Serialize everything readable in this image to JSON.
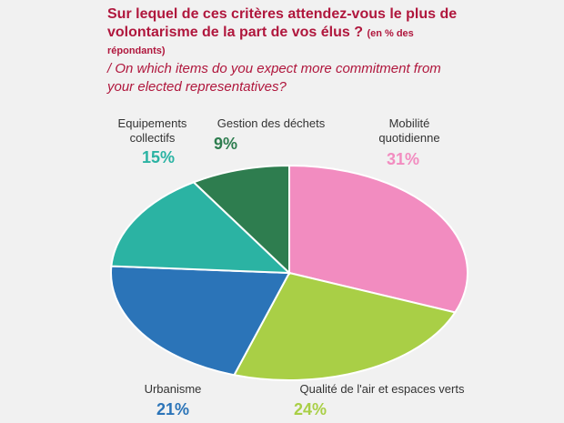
{
  "chart_data": {
    "type": "pie",
    "title": "Sur lequel de ces critères attendez-vous le plus de volontarisme de la part de vos élus ?",
    "title_note": "(en % des répondants)",
    "subtitle": "/ On which items do you expect more commitment from your elected representatives?",
    "categories": [
      "Mobilité quotidienne",
      "Qualité de l'air et espaces verts",
      "Urbanisme",
      "Equipements collectifs",
      "Gestion des déchets"
    ],
    "values": [
      31,
      24,
      21,
      15,
      9
    ],
    "value_labels": [
      "31%",
      "24%",
      "21%",
      "15%",
      "9%"
    ],
    "colors": [
      "#f28cc0",
      "#a9cf46",
      "#2b74b8",
      "#2bb3a3",
      "#2e7d4f"
    ]
  }
}
